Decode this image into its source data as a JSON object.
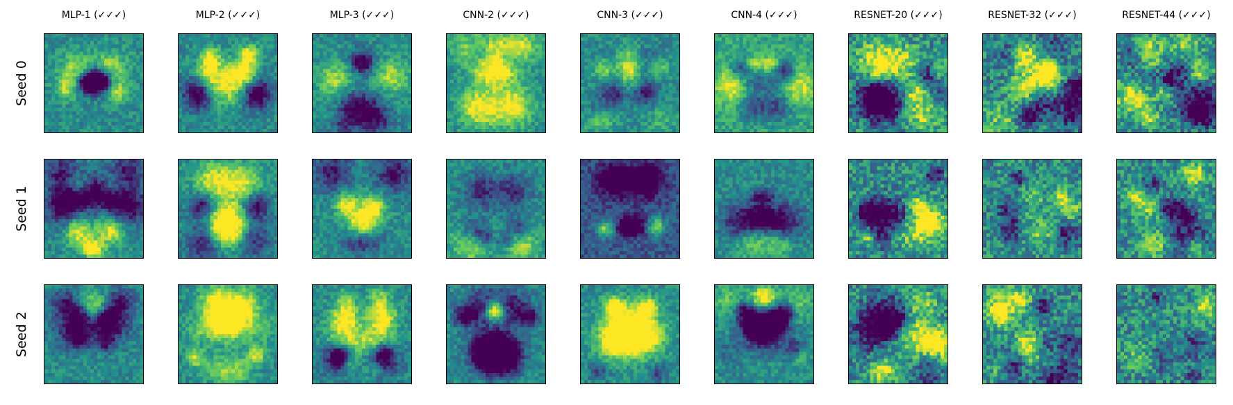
{
  "column_titles": [
    "MLP-1 (✓✓✓)",
    "MLP-2 (✓✓✓)",
    "MLP-3 (✓✓✓)",
    "CNN-2 (✓✓✓)",
    "CNN-3 (✓✓✓)",
    "CNN-4 (✓✓✓)",
    "RESNET-20 (✓✓✓)",
    "RESNET-32 (✓✓✓)",
    "RESNET-44 (✓✓✓)"
  ],
  "row_labels": [
    "Seed 0",
    "Seed 1",
    "Seed 2"
  ],
  "colormap": [
    "#440154",
    "#3b528b",
    "#21918c",
    "#5ec962",
    "#fde725"
  ],
  "grid": {
    "rows": 3,
    "cols": 9
  },
  "panels": [
    {
      "model": "MLP-1",
      "seed": "Seed 0",
      "appearance": "heatmap"
    },
    {
      "model": "MLP-2",
      "seed": "Seed 0",
      "appearance": "heatmap"
    },
    {
      "model": "MLP-3",
      "seed": "Seed 0",
      "appearance": "heatmap"
    },
    {
      "model": "CNN-2",
      "seed": "Seed 0",
      "appearance": "heatmap"
    },
    {
      "model": "CNN-3",
      "seed": "Seed 0",
      "appearance": "heatmap"
    },
    {
      "model": "CNN-4",
      "seed": "Seed 0",
      "appearance": "heatmap"
    },
    {
      "model": "RESNET-20",
      "seed": "Seed 0",
      "appearance": "heatmap"
    },
    {
      "model": "RESNET-32",
      "seed": "Seed 0",
      "appearance": "heatmap"
    },
    {
      "model": "RESNET-44",
      "seed": "Seed 0",
      "appearance": "heatmap"
    },
    {
      "model": "MLP-1",
      "seed": "Seed 1",
      "appearance": "heatmap"
    },
    {
      "model": "MLP-2",
      "seed": "Seed 1",
      "appearance": "heatmap"
    },
    {
      "model": "MLP-3",
      "seed": "Seed 1",
      "appearance": "heatmap"
    },
    {
      "model": "CNN-2",
      "seed": "Seed 1",
      "appearance": "heatmap"
    },
    {
      "model": "CNN-3",
      "seed": "Seed 1",
      "appearance": "heatmap"
    },
    {
      "model": "CNN-4",
      "seed": "Seed 1",
      "appearance": "heatmap"
    },
    {
      "model": "RESNET-20",
      "seed": "Seed 1",
      "appearance": "heatmap"
    },
    {
      "model": "RESNET-32",
      "seed": "Seed 1",
      "appearance": "heatmap"
    },
    {
      "model": "RESNET-44",
      "seed": "Seed 1",
      "appearance": "heatmap"
    },
    {
      "model": "MLP-1",
      "seed": "Seed 2",
      "appearance": "heatmap"
    },
    {
      "model": "MLP-2",
      "seed": "Seed 2",
      "appearance": "heatmap"
    },
    {
      "model": "MLP-3",
      "seed": "Seed 2",
      "appearance": "heatmap"
    },
    {
      "model": "CNN-2",
      "seed": "Seed 2",
      "appearance": "heatmap"
    },
    {
      "model": "CNN-3",
      "seed": "Seed 2",
      "appearance": "heatmap"
    },
    {
      "model": "CNN-4",
      "seed": "Seed 2",
      "appearance": "heatmap"
    },
    {
      "model": "RESNET-20",
      "seed": "Seed 2",
      "appearance": "heatmap"
    },
    {
      "model": "RESNET-32",
      "seed": "Seed 2",
      "appearance": "heatmap"
    },
    {
      "model": "RESNET-44",
      "seed": "Seed 2",
      "appearance": "heatmap"
    }
  ]
}
